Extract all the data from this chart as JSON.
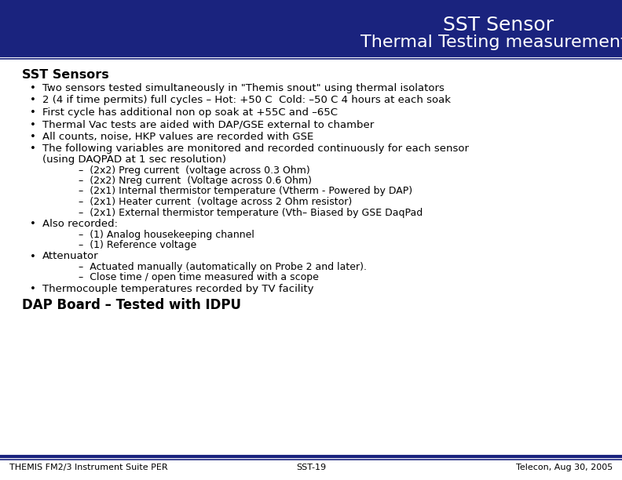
{
  "title_line1": "SST Sensor",
  "title_line2": "Thermal Testing measurements",
  "header_bg": "#1a237e",
  "header_text_color": "#ffffff",
  "bg_color": "#ffffff",
  "footer_line_color": "#1a237e",
  "footer_left": "THEMIS FM2/3 Instrument Suite PER",
  "footer_center": "SST-19",
  "footer_right": "Telecon, Aug 30, 2005",
  "section_title": "SST Sensors",
  "bullet1": "Two sensors tested simultaneously in \"Themis snout\" using thermal isolators",
  "bullet2": "2 (4 if time permits) full cycles – Hot: +50 C  Cold: –50 C 4 hours at each soak",
  "bullet3": "First cycle has additional non op soak at +55C and –65C",
  "bullet4": "Thermal Vac tests are aided with DAP/GSE external to chamber",
  "bullet5": "All counts, noise, HKP values are recorded with GSE",
  "bullet6a": "The following variables are monitored and recorded continuously for each sensor",
  "bullet6b": "(using DAQPAD at 1 sec resolution)",
  "sub_bullets_following": [
    "–  (2x2) Preg current  (voltage across 0.3 Ohm)",
    "–  (2x2) Nreg current  (Voltage across 0.6 Ohm)",
    "–  (2x1) Internal thermistor temperature (Vtherm - Powered by DAP)",
    "–  (2x1) Heater current  (voltage across 2 Ohm resistor)",
    "–  (2x1) External thermistor temperature (Vth– Biased by GSE DaqPad"
  ],
  "also_recorded_bullet": "Also recorded:",
  "also_recorded_sub": [
    "–  (1) Analog housekeeping channel",
    "–  (1) Reference voltage"
  ],
  "attenuator_bullet": "Attenuator",
  "attenuator_sub": [
    "–  Actuated manually (automatically on Probe 2 and later).",
    "–  Close time / open time measured with a scope"
  ],
  "thermo_bullet": "Thermocouple temperatures recorded by TV facility",
  "dap_board": "DAP Board – Tested with IDPU",
  "fs_body": 9.5,
  "fs_section": 11.5,
  "fs_dap": 12,
  "fs_footer": 8,
  "fs_title1": 18,
  "fs_title2": 16
}
